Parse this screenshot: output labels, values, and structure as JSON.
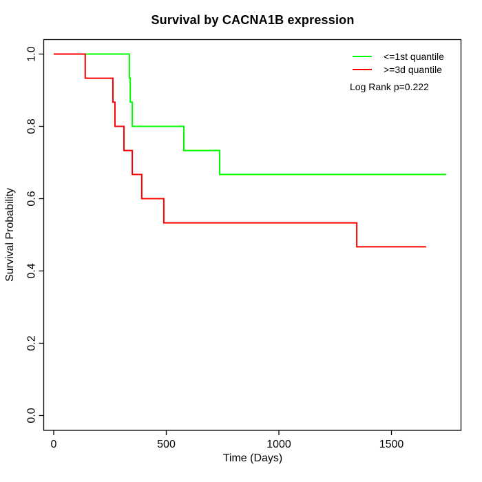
{
  "title": "Survival by CACNA1B expression",
  "axes": {
    "x": {
      "label": "Time (Days)",
      "tick_labels": [
        "0",
        "500",
        "1000",
        "1500"
      ],
      "tick_values": [
        0,
        500,
        1000,
        1500
      ]
    },
    "y": {
      "label": "Survival Probability",
      "tick_labels": [
        "0.0",
        "0.2",
        "0.4",
        "0.6",
        "0.8",
        "1.0"
      ],
      "tick_values": [
        0,
        0.2,
        0.4,
        0.6,
        0.8,
        1.0
      ]
    }
  },
  "legend": {
    "entries": [
      {
        "label": "<=1st quantile",
        "color": "#00ff00"
      },
      {
        "label": ">=3d quantile",
        "color": "#ff0000"
      }
    ],
    "annotation": "Log Rank p=0.222"
  },
  "chart_data": {
    "type": "line",
    "subtype": "kaplan-meier-step",
    "title": "Survival by CACNA1B expression",
    "xlabel": "Time (Days)",
    "ylabel": "Survival Probability",
    "xlim": [
      0,
      1810
    ],
    "ylim": [
      -0.04,
      1.04
    ],
    "grid": false,
    "legend_position": "top-right",
    "annotation": "Log Rank p=0.222",
    "series": [
      {
        "name": "<=1st quantile",
        "color": "#00ff00",
        "start": [
          0,
          1.0
        ],
        "drops": [
          [
            336,
            0.933
          ],
          [
            340,
            0.867
          ],
          [
            349,
            0.8
          ],
          [
            578,
            0.733
          ],
          [
            737,
            0.667
          ]
        ],
        "end_day": 1743
      },
      {
        "name": ">=3d quantile",
        "color": "#ff0000",
        "start": [
          0,
          1.0
        ],
        "drops": [
          [
            140,
            0.933
          ],
          [
            263,
            0.867
          ],
          [
            272,
            0.8
          ],
          [
            312,
            0.733
          ],
          [
            349,
            0.667
          ],
          [
            391,
            0.6
          ],
          [
            489,
            0.533
          ],
          [
            1346,
            0.467
          ]
        ],
        "end_day": 1654
      }
    ]
  }
}
